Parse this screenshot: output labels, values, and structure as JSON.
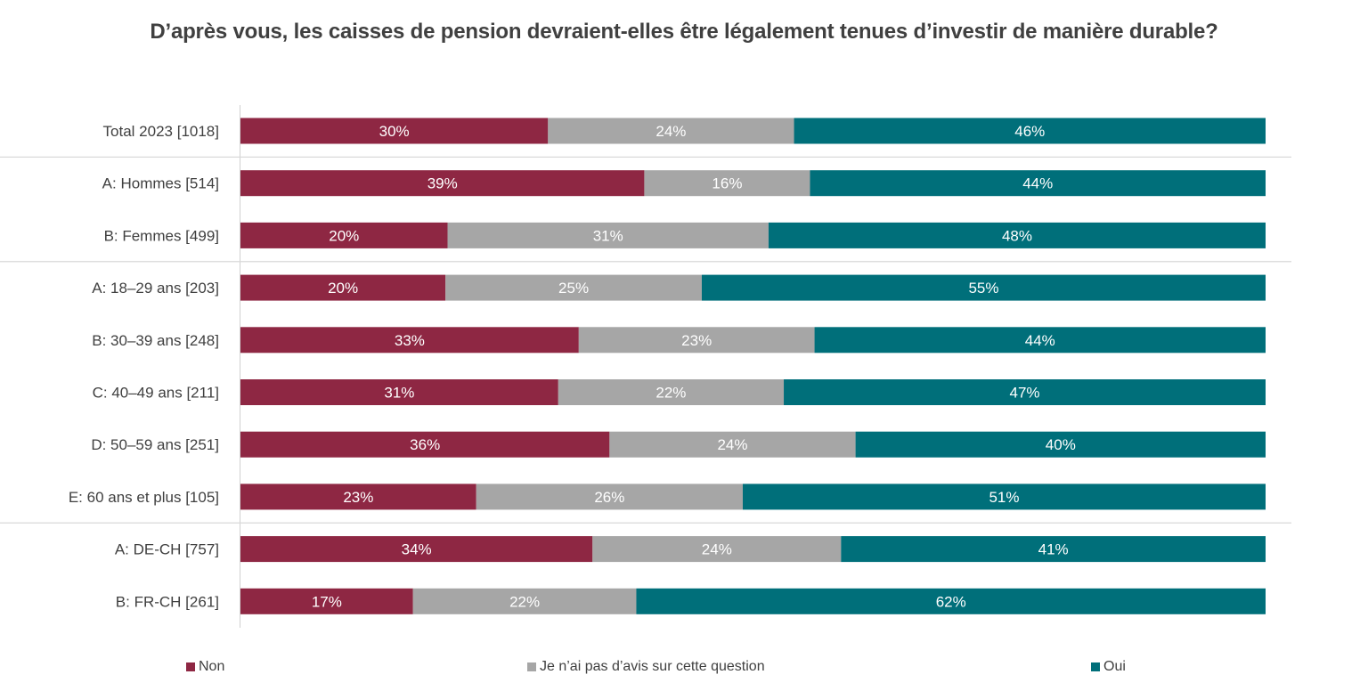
{
  "chart_data": {
    "type": "bar",
    "orientation": "horizontal",
    "stacked": true,
    "title": "D’après vous, les caisses de pension devraient-elles être légalement tenues d’investir de manière durable?",
    "categories": [
      "Total 2023 [1018]",
      "A: Hommes [514]",
      "B: Femmes [499]",
      "A: 18–29 ans [203]",
      "B: 30–39 ans [248]",
      "C: 40–49 ans [211]",
      "D: 50–59 ans [251]",
      "E: 60 ans et plus [105]",
      "A: DE-CH [757]",
      "B: FR-CH [261]"
    ],
    "series": [
      {
        "name": "Non",
        "color": "#8e2743",
        "values": [
          30,
          39,
          20,
          20,
          33,
          31,
          36,
          23,
          34,
          17
        ]
      },
      {
        "name": "Je n’ai pas d’avis sur cette question",
        "color": "#a6a6a6",
        "values": [
          24,
          16,
          31,
          25,
          23,
          22,
          24,
          26,
          24,
          22
        ]
      },
      {
        "name": "Oui",
        "color": "#006f7a",
        "values": [
          46,
          44,
          48,
          55,
          44,
          47,
          40,
          51,
          41,
          62
        ]
      }
    ],
    "value_suffix": "%",
    "group_separators_after": [
      0,
      2,
      7
    ],
    "legend_position": "bottom",
    "grid": false
  }
}
